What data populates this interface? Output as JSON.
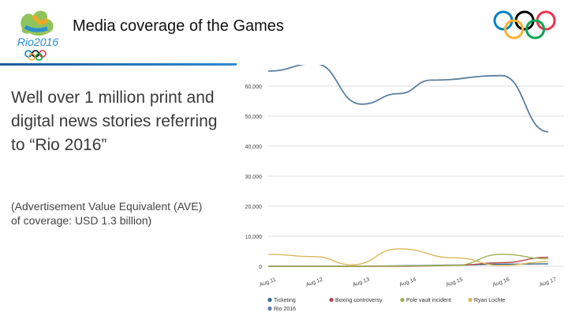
{
  "slide": {
    "title": "Media coverage of the Games",
    "headline": "Well over 1 million print and digital news stories referring to “Rio 2016”",
    "subtext": "(Advertisement Value Equivalent (AVE) of coverage:  USD 1.3 billion)",
    "logo_text": "Rio2016"
  },
  "colors": {
    "rule": "#1c5c9a",
    "rio_line": "#5b7fa0",
    "ticketing": "#2e6b8f",
    "boxing": "#b84a4a",
    "pole_vault": "#9db04e",
    "ryan": "#d9b85c",
    "rings": [
      "#0081c8",
      "#fcb131",
      "#000000",
      "#00a651",
      "#ee334e"
    ]
  },
  "chart_data": {
    "type": "line",
    "x": [
      "Aug 11",
      "Aug 12",
      "Aug 13",
      "Aug 14",
      "Aug 15",
      "Aug 16",
      "Aug 17"
    ],
    "ylim": [
      0,
      65000
    ],
    "yticks": [
      "0",
      "10,000",
      "20,000",
      "30,000",
      "40,000",
      "50,000",
      "60,000"
    ],
    "ytick_values": [
      0,
      10000,
      20000,
      30000,
      40000,
      50000,
      60000
    ],
    "grid": true,
    "legend_position": "bottom",
    "series": [
      {
        "name": "Ticketing",
        "color": "#2e6b8f",
        "points": [
          [
            0,
            0
          ],
          [
            1,
            0
          ],
          [
            2,
            0
          ],
          [
            3,
            200
          ],
          [
            4,
            400
          ],
          [
            5,
            700
          ],
          [
            6,
            800
          ]
        ]
      },
      {
        "name": "Boxing controversy",
        "color": "#b84a4a",
        "points": [
          [
            0,
            0
          ],
          [
            1,
            0
          ],
          [
            2,
            0
          ],
          [
            3,
            0
          ],
          [
            4,
            300
          ],
          [
            5,
            1200
          ],
          [
            6,
            3000
          ]
        ]
      },
      {
        "name": "Pole vault incident",
        "color": "#9db04e",
        "points": [
          [
            0,
            0
          ],
          [
            1,
            0
          ],
          [
            2,
            0
          ],
          [
            3,
            100
          ],
          [
            4,
            300
          ],
          [
            5,
            4000
          ],
          [
            6,
            2500
          ]
        ]
      },
      {
        "name": "Ryan Lochte",
        "color": "#d9b85c",
        "points": [
          [
            0,
            4000
          ],
          [
            1,
            3200
          ],
          [
            1.8,
            500
          ],
          [
            2.8,
            5800
          ],
          [
            4,
            2800
          ],
          [
            5,
            300
          ],
          [
            6,
            1500
          ]
        ]
      },
      {
        "name": "Rio 2016",
        "color": "#5b7fa0",
        "points": [
          [
            0,
            65000
          ],
          [
            1,
            67500
          ],
          [
            2,
            54000
          ],
          [
            2.8,
            57500
          ],
          [
            3.5,
            62000
          ],
          [
            5,
            63500
          ],
          [
            6,
            44800
          ]
        ]
      }
    ]
  }
}
